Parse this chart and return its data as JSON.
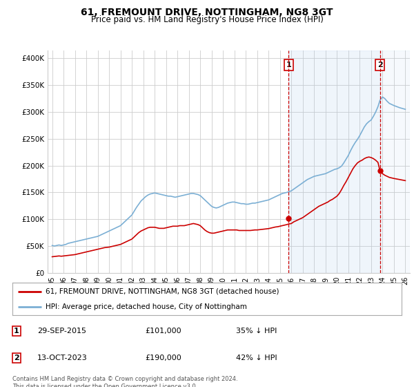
{
  "title": "61, FREMOUNT DRIVE, NOTTINGHAM, NG8 3GT",
  "subtitle": "Price paid vs. HM Land Registry's House Price Index (HPI)",
  "ylabel_ticks": [
    "£0",
    "£50K",
    "£100K",
    "£150K",
    "£200K",
    "£250K",
    "£300K",
    "£350K",
    "£400K"
  ],
  "ytick_vals": [
    0,
    50000,
    100000,
    150000,
    200000,
    250000,
    300000,
    350000,
    400000
  ],
  "ylim": [
    0,
    415000
  ],
  "xlim_left": 1994.6,
  "xlim_right": 2026.4,
  "background_color": "#ffffff",
  "grid_color": "#cccccc",
  "red_line_color": "#cc0000",
  "blue_line_color": "#7bafd4",
  "shade_color": "#ddeeff",
  "sale1_year": 2015.75,
  "sale1_price": 101000,
  "sale1_label": "1",
  "sale2_year": 2023.78,
  "sale2_price": 190000,
  "sale2_label": "2",
  "legend_red": "61, FREMOUNT DRIVE, NOTTINGHAM, NG8 3GT (detached house)",
  "legend_blue": "HPI: Average price, detached house, City of Nottingham",
  "annotation1_date": "29-SEP-2015",
  "annotation1_price": "£101,000",
  "annotation1_pct": "35% ↓ HPI",
  "annotation2_date": "13-OCT-2023",
  "annotation2_price": "£190,000",
  "annotation2_pct": "42% ↓ HPI",
  "footer": "Contains HM Land Registry data © Crown copyright and database right 2024.\nThis data is licensed under the Open Government Licence v3.0.",
  "hpi_years": [
    1995.0,
    1995.1,
    1995.2,
    1995.3,
    1995.4,
    1995.5,
    1995.6,
    1995.7,
    1995.8,
    1995.9,
    1996.0,
    1996.2,
    1996.4,
    1996.6,
    1996.8,
    1997.0,
    1997.2,
    1997.4,
    1997.6,
    1997.8,
    1998.0,
    1998.2,
    1998.4,
    1998.6,
    1998.8,
    1999.0,
    1999.2,
    1999.4,
    1999.6,
    1999.8,
    2000.0,
    2000.2,
    2000.4,
    2000.6,
    2000.8,
    2001.0,
    2001.2,
    2001.4,
    2001.6,
    2001.8,
    2002.0,
    2002.2,
    2002.4,
    2002.6,
    2002.8,
    2003.0,
    2003.2,
    2003.4,
    2003.6,
    2003.8,
    2004.0,
    2004.2,
    2004.4,
    2004.6,
    2004.8,
    2005.0,
    2005.2,
    2005.4,
    2005.6,
    2005.8,
    2006.0,
    2006.2,
    2006.4,
    2006.6,
    2006.8,
    2007.0,
    2007.2,
    2007.4,
    2007.6,
    2007.8,
    2008.0,
    2008.2,
    2008.4,
    2008.6,
    2008.8,
    2009.0,
    2009.2,
    2009.4,
    2009.6,
    2009.8,
    2010.0,
    2010.2,
    2010.4,
    2010.6,
    2010.8,
    2011.0,
    2011.2,
    2011.4,
    2011.6,
    2011.8,
    2012.0,
    2012.2,
    2012.4,
    2012.6,
    2012.8,
    2013.0,
    2013.2,
    2013.4,
    2013.6,
    2013.8,
    2014.0,
    2014.2,
    2014.4,
    2014.6,
    2014.8,
    2015.0,
    2015.2,
    2015.4,
    2015.6,
    2015.75,
    2016.0,
    2016.2,
    2016.4,
    2016.6,
    2016.8,
    2017.0,
    2017.2,
    2017.4,
    2017.6,
    2017.8,
    2018.0,
    2018.2,
    2018.4,
    2018.6,
    2018.8,
    2019.0,
    2019.2,
    2019.4,
    2019.6,
    2019.8,
    2020.0,
    2020.2,
    2020.4,
    2020.6,
    2020.8,
    2021.0,
    2021.2,
    2021.4,
    2021.6,
    2021.8,
    2022.0,
    2022.2,
    2022.4,
    2022.6,
    2022.8,
    2023.0,
    2023.2,
    2023.4,
    2023.6,
    2023.78,
    2024.0,
    2024.2,
    2024.4,
    2024.6,
    2025.0,
    2025.5,
    2026.0
  ],
  "hpi_vals": [
    51000,
    50500,
    50000,
    50500,
    51000,
    51500,
    52000,
    51500,
    51000,
    51500,
    52000,
    53000,
    55000,
    56000,
    57000,
    58000,
    59000,
    60000,
    61000,
    62000,
    63000,
    64000,
    65000,
    66000,
    67000,
    68000,
    70000,
    72000,
    74000,
    76000,
    78000,
    80000,
    82000,
    84000,
    86000,
    88000,
    92000,
    96000,
    100000,
    104000,
    108000,
    115000,
    122000,
    128000,
    134000,
    138000,
    142000,
    145000,
    147000,
    148000,
    149000,
    148000,
    147000,
    146000,
    145000,
    144000,
    143000,
    143000,
    142000,
    141000,
    142000,
    143000,
    144000,
    145000,
    146000,
    147000,
    148000,
    148000,
    147000,
    146000,
    144000,
    140000,
    136000,
    132000,
    128000,
    124000,
    122000,
    121000,
    122000,
    124000,
    126000,
    128000,
    130000,
    131000,
    132000,
    132000,
    131000,
    130000,
    129000,
    129000,
    128000,
    128000,
    129000,
    130000,
    130000,
    131000,
    132000,
    133000,
    134000,
    135000,
    136000,
    138000,
    140000,
    142000,
    144000,
    146000,
    148000,
    149000,
    150000,
    151000,
    153000,
    156000,
    159000,
    162000,
    165000,
    168000,
    171000,
    174000,
    176000,
    178000,
    180000,
    181000,
    182000,
    183000,
    184000,
    185000,
    187000,
    189000,
    191000,
    193000,
    194000,
    196000,
    199000,
    205000,
    212000,
    219000,
    228000,
    236000,
    243000,
    249000,
    256000,
    264000,
    272000,
    278000,
    282000,
    285000,
    292000,
    300000,
    310000,
    322000,
    328000,
    325000,
    320000,
    316000,
    312000,
    308000,
    305000
  ],
  "red_years": [
    1995.0,
    1995.2,
    1995.4,
    1995.6,
    1995.8,
    1996.0,
    1996.2,
    1996.4,
    1996.6,
    1996.8,
    1997.0,
    1997.2,
    1997.4,
    1997.6,
    1997.8,
    1998.0,
    1998.2,
    1998.4,
    1998.6,
    1998.8,
    1999.0,
    1999.2,
    1999.4,
    1999.6,
    1999.8,
    2000.0,
    2000.2,
    2000.4,
    2000.6,
    2000.8,
    2001.0,
    2001.2,
    2001.4,
    2001.6,
    2001.8,
    2002.0,
    2002.2,
    2002.4,
    2002.6,
    2002.8,
    2003.0,
    2003.2,
    2003.4,
    2003.6,
    2003.8,
    2004.0,
    2004.2,
    2004.4,
    2004.6,
    2004.8,
    2005.0,
    2005.2,
    2005.4,
    2005.6,
    2005.8,
    2006.0,
    2006.2,
    2006.4,
    2006.6,
    2006.8,
    2007.0,
    2007.2,
    2007.4,
    2007.6,
    2007.8,
    2008.0,
    2008.2,
    2008.4,
    2008.6,
    2008.8,
    2009.0,
    2009.2,
    2009.4,
    2009.6,
    2009.8,
    2010.0,
    2010.2,
    2010.4,
    2010.6,
    2010.8,
    2011.0,
    2011.2,
    2011.4,
    2011.6,
    2011.8,
    2012.0,
    2012.2,
    2012.4,
    2012.6,
    2012.8,
    2013.0,
    2013.2,
    2013.4,
    2013.6,
    2013.8,
    2014.0,
    2014.2,
    2014.4,
    2014.6,
    2014.8,
    2015.0,
    2015.2,
    2015.4,
    2015.6,
    2015.75,
    2016.0,
    2016.2,
    2016.4,
    2016.6,
    2016.8,
    2017.0,
    2017.2,
    2017.4,
    2017.6,
    2017.8,
    2018.0,
    2018.2,
    2018.4,
    2018.6,
    2018.8,
    2019.0,
    2019.2,
    2019.4,
    2019.6,
    2019.8,
    2020.0,
    2020.2,
    2020.4,
    2020.6,
    2020.8,
    2021.0,
    2021.2,
    2021.4,
    2021.6,
    2021.8,
    2022.0,
    2022.2,
    2022.4,
    2022.6,
    2022.8,
    2023.0,
    2023.2,
    2023.4,
    2023.6,
    2023.78,
    2024.0,
    2024.2,
    2024.4,
    2024.6,
    2025.0,
    2025.5,
    2026.0
  ],
  "red_vals": [
    30000,
    30500,
    31000,
    31500,
    31000,
    31500,
    32000,
    32500,
    33000,
    33500,
    34000,
    35000,
    36000,
    37000,
    38000,
    39000,
    40000,
    41000,
    42000,
    43000,
    44000,
    45000,
    46000,
    47000,
    47500,
    48000,
    49000,
    50000,
    51000,
    52000,
    53000,
    55000,
    57000,
    59000,
    61000,
    63000,
    67000,
    71000,
    75000,
    78000,
    80000,
    82000,
    84000,
    85000,
    85000,
    85000,
    84000,
    83000,
    83000,
    83000,
    84000,
    85000,
    86000,
    87000,
    87000,
    87000,
    88000,
    88000,
    88000,
    89000,
    90000,
    91000,
    92000,
    91000,
    90000,
    88000,
    84000,
    80000,
    77000,
    75000,
    74000,
    74000,
    75000,
    76000,
    77000,
    78000,
    79000,
    80000,
    80000,
    80000,
    80000,
    80000,
    79000,
    79000,
    79000,
    79000,
    79000,
    79000,
    79500,
    80000,
    80000,
    80500,
    81000,
    81500,
    82000,
    82500,
    83500,
    84500,
    85500,
    86000,
    87000,
    88000,
    89000,
    90000,
    91000,
    92000,
    95000,
    97000,
    99000,
    101000,
    103000,
    106000,
    109000,
    112000,
    115000,
    118000,
    121000,
    124000,
    126000,
    128000,
    130000,
    132000,
    135000,
    137000,
    140000,
    143000,
    148000,
    155000,
    163000,
    170000,
    178000,
    186000,
    194000,
    200000,
    205000,
    208000,
    210000,
    213000,
    215000,
    216000,
    215000,
    213000,
    210000,
    206000,
    190000,
    185000,
    182000,
    180000,
    178000,
    176000,
    174000,
    172000
  ]
}
